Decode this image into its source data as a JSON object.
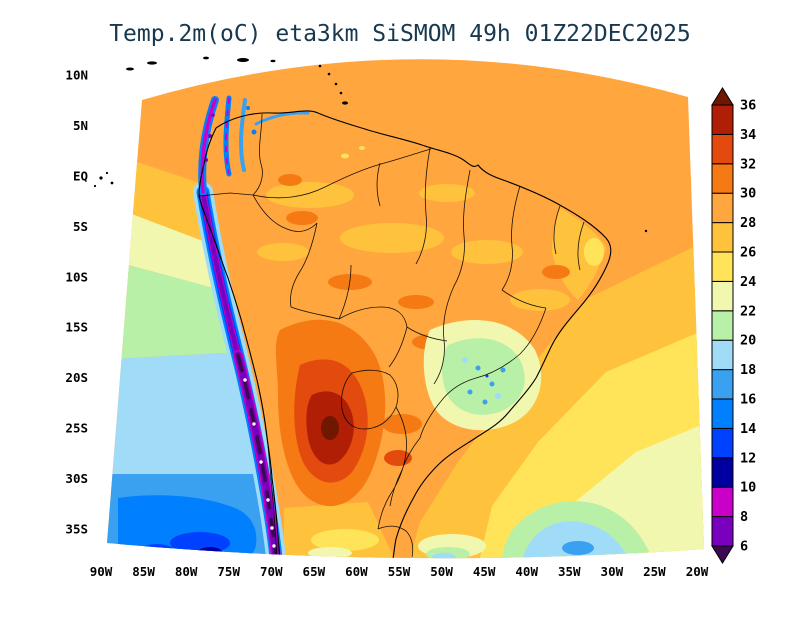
{
  "title": "Temp.2m(oC) eta3km SiSMOM 49h 01Z22DEC2025",
  "colors": {
    "background": "#ffffff",
    "title": "#17384e",
    "map_lines": "#000000"
  },
  "axes": {
    "lat_ticks": [
      "10N",
      "5N",
      "EQ",
      "5S",
      "10S",
      "15S",
      "20S",
      "25S",
      "30S",
      "35S"
    ],
    "lon_ticks": [
      "90W",
      "85W",
      "80W",
      "75W",
      "70W",
      "65W",
      "60W",
      "55W",
      "50W",
      "45W",
      "40W",
      "35W",
      "30W",
      "25W",
      "20W"
    ]
  },
  "colorbar": {
    "labels_top_to_bottom": [
      "36",
      "34",
      "32",
      "30",
      "28",
      "26",
      "24",
      "22",
      "20",
      "18",
      "16",
      "14",
      "12",
      "10",
      "8",
      "6"
    ],
    "segments_bottom_to_top": [
      {
        "range": "<6",
        "color": "#3d0752"
      },
      {
        "range": "6-8",
        "color": "#7a00bf"
      },
      {
        "range": "8-10",
        "color": "#c800c8"
      },
      {
        "range": "10-12",
        "color": "#0000a0"
      },
      {
        "range": "12-14",
        "color": "#0040ff"
      },
      {
        "range": "14-16",
        "color": "#0080ff"
      },
      {
        "range": "16-18",
        "color": "#3aa0f0"
      },
      {
        "range": "18-20",
        "color": "#a0dcf8"
      },
      {
        "range": "20-22",
        "color": "#b8f0a8"
      },
      {
        "range": "22-24",
        "color": "#f2f7b0"
      },
      {
        "range": "24-26",
        "color": "#ffe45a"
      },
      {
        "range": "26-28",
        "color": "#ffc23c"
      },
      {
        "range": "28-30",
        "color": "#ffa63e"
      },
      {
        "range": "30-32",
        "color": "#f57a14"
      },
      {
        "range": "32-34",
        "color": "#e34a0e"
      },
      {
        "range": "34-36",
        "color": "#b01e05"
      },
      {
        "range": ">36",
        "color": "#701700"
      }
    ]
  },
  "chart_data": {
    "type": "heatmap",
    "title": "Temp.2m(oC) eta3km SiSMOM 49h 01Z22DEC2025",
    "variable_label": "Temp.2m(oC)",
    "model_label": "eta3km",
    "system_label": "SiSMOM",
    "forecast_label": "49h",
    "valid_label": "01Z22DEC2025",
    "region": "South America",
    "x_tick_labels": [
      "90W",
      "85W",
      "80W",
      "75W",
      "70W",
      "65W",
      "60W",
      "55W",
      "50W",
      "45W",
      "40W",
      "35W",
      "30W",
      "25W",
      "20W"
    ],
    "y_tick_labels": [
      "10N",
      "5N",
      "EQ",
      "5S",
      "10S",
      "15S",
      "20S",
      "25S",
      "30S",
      "35S"
    ],
    "colorbar_levels_degC": [
      6,
      8,
      10,
      12,
      14,
      16,
      18,
      20,
      22,
      24,
      26,
      28,
      30,
      32,
      34,
      36
    ],
    "colorbar_colors_bottom_to_top": [
      "#3d0752",
      "#7a00bf",
      "#c800c8",
      "#0000a0",
      "#0040ff",
      "#0080ff",
      "#3aa0f0",
      "#a0dcf8",
      "#b8f0a8",
      "#f2f7b0",
      "#ffe45a",
      "#ffc23c",
      "#ffa63e",
      "#f57a14",
      "#e34a0e",
      "#b01e05",
      "#701700"
    ],
    "legend_position": "right",
    "grid": false,
    "field_reading_by_region": [
      {
        "region": "Northern domain / tropical Atlantic and NW Pacific corner",
        "approx_temp_C": "26-30"
      },
      {
        "region": "Amazon basin and central Brazil",
        "approx_temp_C": "28-32"
      },
      {
        "region": "Andes cordillera (Colombia to Chile)",
        "approx_temp_C": "<6-12"
      },
      {
        "region": "Paraguay / northern Argentina hot core",
        "approx_temp_C": "32-38"
      },
      {
        "region": "SE Brazil highlands (mottled cool patch)",
        "approx_temp_C": "18-24"
      },
      {
        "region": "Peru-Chile coastal Pacific",
        "approx_temp_C": "14-22"
      },
      {
        "region": "Southwest Pacific corner of domain",
        "approx_temp_C": "10-18"
      },
      {
        "region": "South Atlantic southeast of coast (banded)",
        "approx_temp_C": "18-26"
      }
    ]
  }
}
